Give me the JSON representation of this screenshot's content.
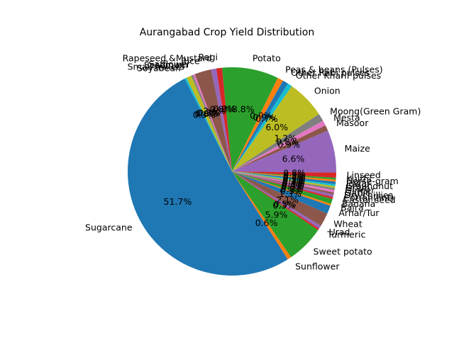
{
  "chart_data": {
    "type": "pie",
    "title": "Aurangabad Crop Yield Distribution",
    "start_angle_deg": 117,
    "direction": "counterclockwise",
    "autopct_format": "percent_1dp",
    "slices": [
      {
        "label": "Sugarcane",
        "value": 51.7,
        "color": "#1f77b4"
      },
      {
        "label": "Sunflower",
        "value": 0.6,
        "color": "#ff7f0e"
      },
      {
        "label": "Sweet potato",
        "value": 5.9,
        "color": "#2ca02c"
      },
      {
        "label": "Turmeric",
        "value": 0.3,
        "color": "#d62728"
      },
      {
        "label": "Urad",
        "value": 0.5,
        "color": "#9467bd"
      },
      {
        "label": "Wheat",
        "value": 2.1,
        "color": "#8c564b"
      },
      {
        "label": "Arhar/Tur",
        "value": 1.3,
        "color": "#1f77b4"
      },
      {
        "label": "Bajra",
        "value": 0.3,
        "color": "#ff7f0e"
      },
      {
        "label": "Banana",
        "value": 0.8,
        "color": "#2ca02c"
      },
      {
        "label": "Castor seed",
        "value": 0.3,
        "color": "#d62728"
      },
      {
        "label": "Cotton(lint)",
        "value": 0.4,
        "color": "#9467bd"
      },
      {
        "label": "Dry chillies",
        "value": 0.3,
        "color": "#8c564b"
      },
      {
        "label": "Garlic",
        "value": 0.4,
        "color": "#e377c2"
      },
      {
        "label": "Ginger",
        "value": 0.3,
        "color": "#7f7f7f"
      },
      {
        "label": "Gram",
        "value": 0.3,
        "color": "#bcbd22"
      },
      {
        "label": "Groundnut",
        "value": 0.3,
        "color": "#17becf"
      },
      {
        "label": "Jowar",
        "value": 0.4,
        "color": "#1f77b4"
      },
      {
        "label": "Horse-gram",
        "value": 0.3,
        "color": "#ff7f0e"
      },
      {
        "label": "Kulthi",
        "value": 0.3,
        "color": "#2ca02c"
      },
      {
        "label": "Linseed",
        "value": 0.8,
        "color": "#d62728"
      },
      {
        "label": "Maize",
        "value": 6.6,
        "color": "#9467bd"
      },
      {
        "label": "Masoor",
        "value": 0.9,
        "color": "#8c564b"
      },
      {
        "label": "Mesta",
        "value": 0.8,
        "color": "#e377c2"
      },
      {
        "label": "Moong(Green Gram)",
        "value": 1.2,
        "color": "#7f7f7f"
      },
      {
        "label": "Onion",
        "value": 6.0,
        "color": "#bcbd22"
      },
      {
        "label": "Other Kharif pulses",
        "value": 0.7,
        "color": "#17becf"
      },
      {
        "label": "Other Rabi pulses",
        "value": 0.9,
        "color": "#1f77b4"
      },
      {
        "label": "Peas & beans (Pulses)",
        "value": 0.9,
        "color": "#ff7f0e"
      },
      {
        "label": "Potato",
        "value": 8.8,
        "color": "#2ca02c"
      },
      {
        "label": "Ragi",
        "value": 0.9,
        "color": "#d62728"
      },
      {
        "label": "Rapeseed &Mustard",
        "value": 0.8,
        "color": "#9467bd"
      },
      {
        "label": "Rice",
        "value": 2.6,
        "color": "#8c564b"
      },
      {
        "label": "Safflower",
        "value": 0.3,
        "color": "#e377c2"
      },
      {
        "label": "Sesamum",
        "value": 0.3,
        "color": "#7f7f7f"
      },
      {
        "label": "Small millets",
        "value": 0.8,
        "color": "#bcbd22"
      },
      {
        "label": "Soyabean",
        "value": 0.3,
        "color": "#17becf"
      }
    ]
  }
}
